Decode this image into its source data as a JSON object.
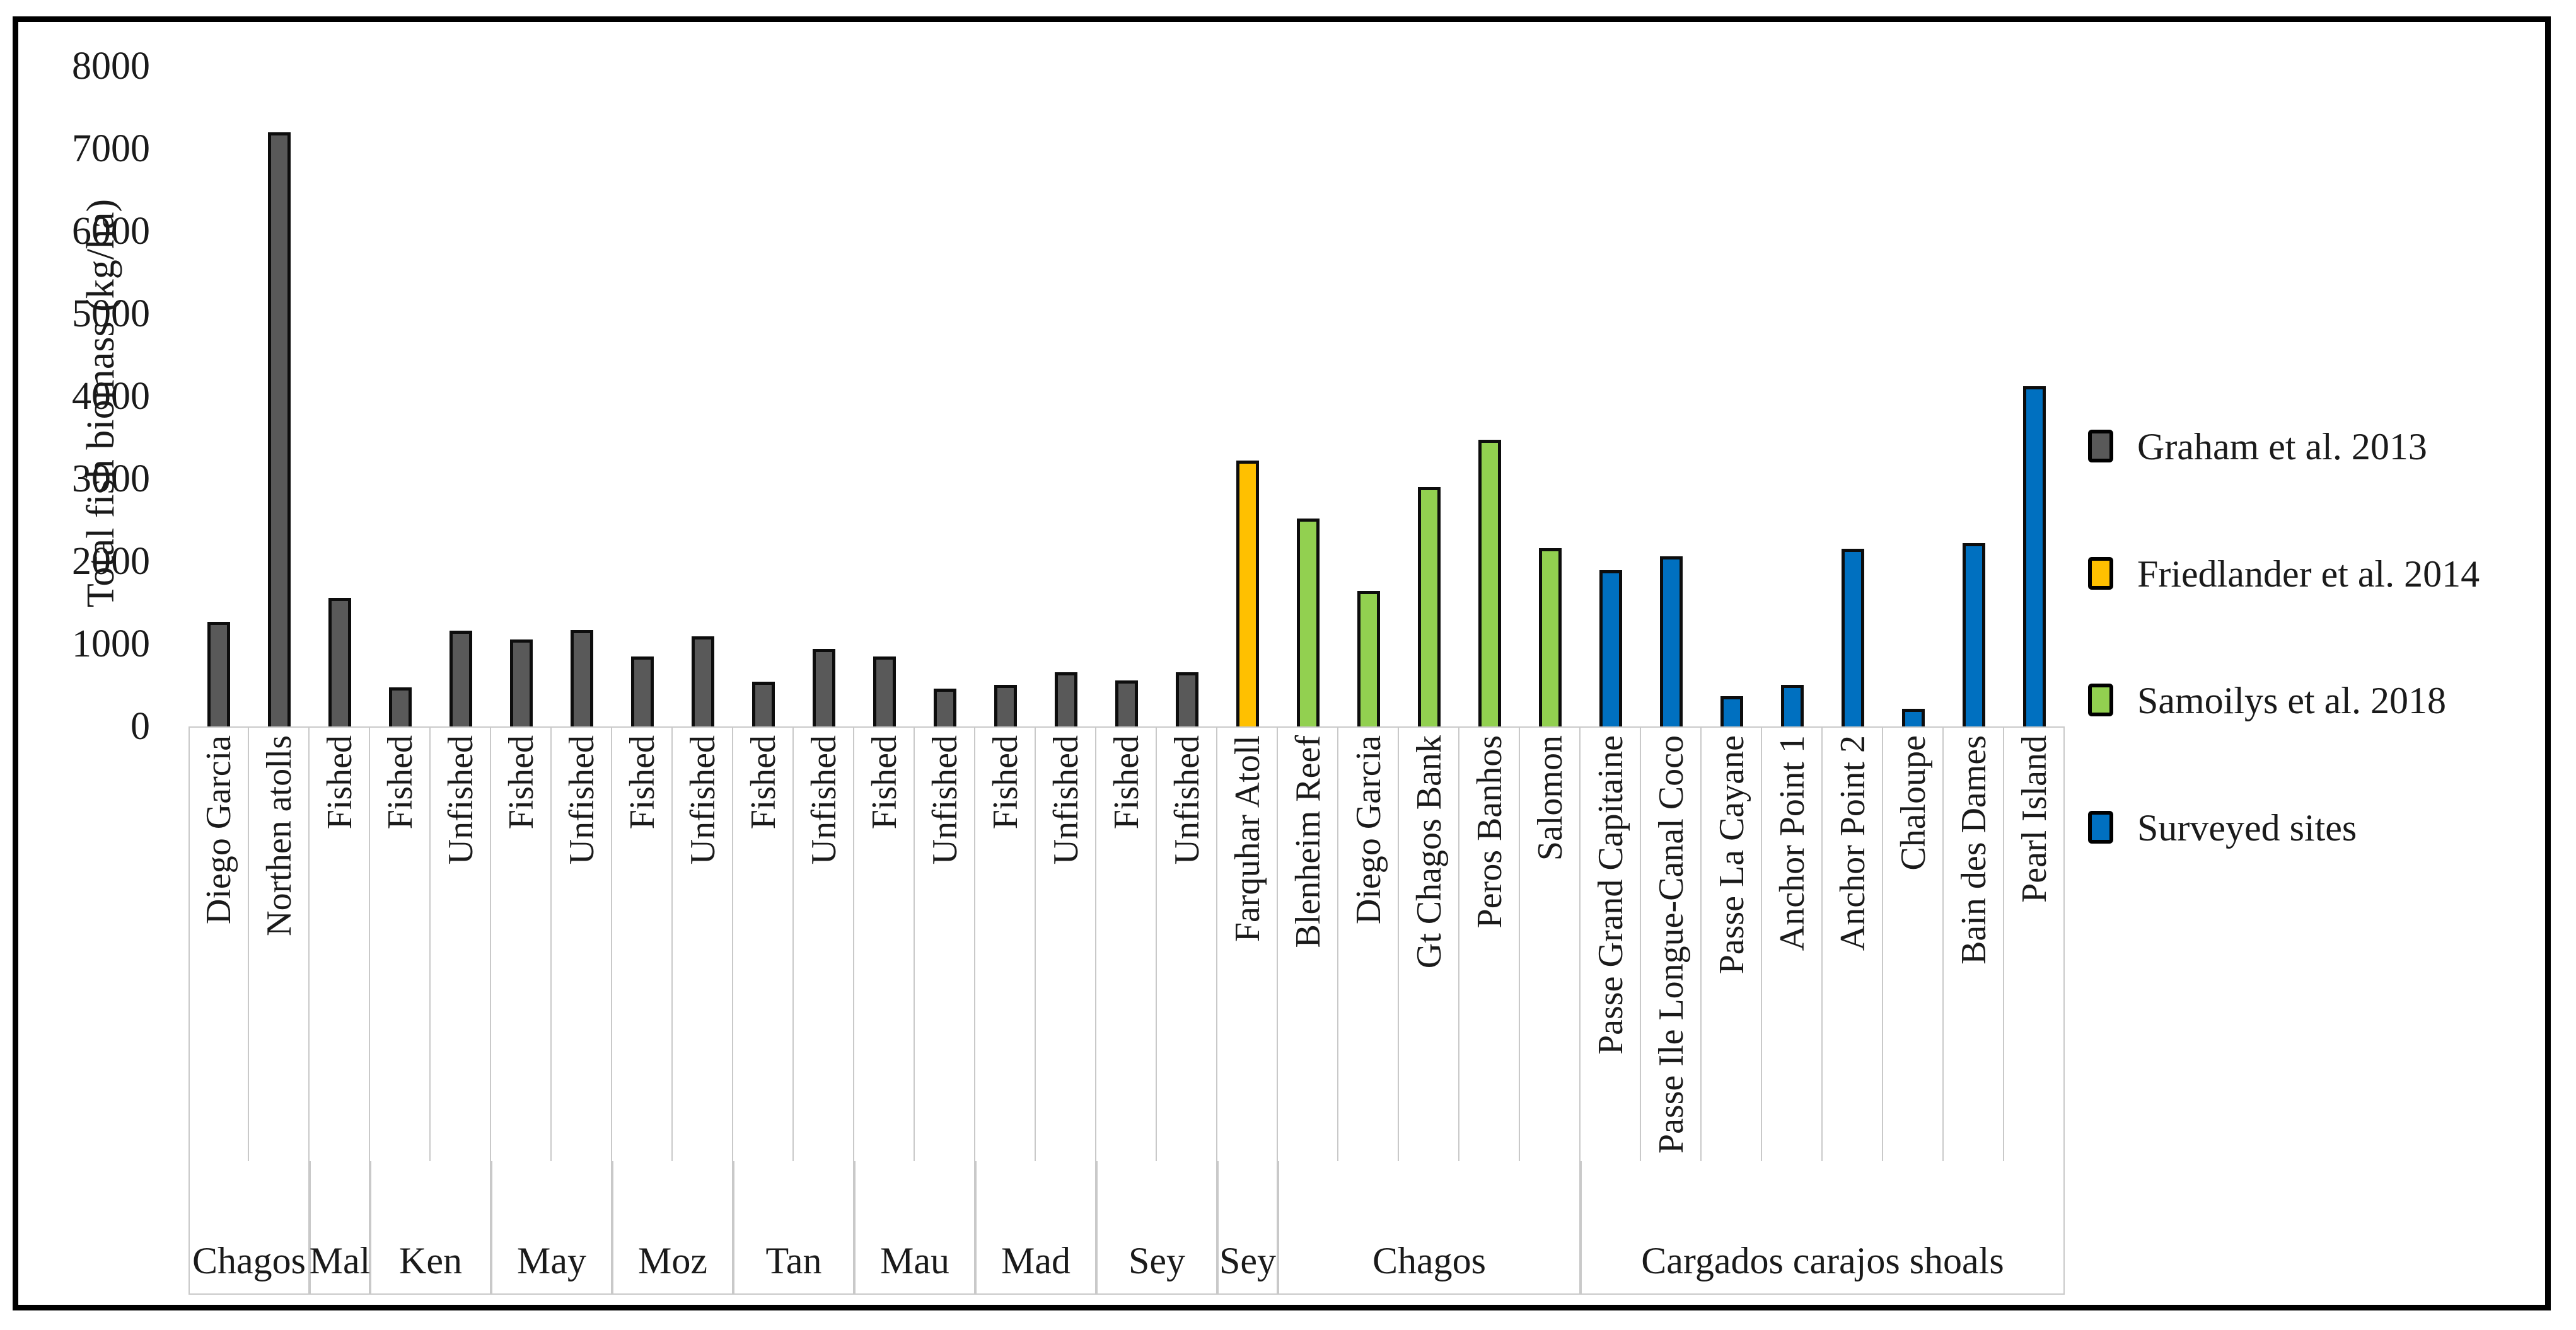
{
  "chart_data": {
    "type": "bar",
    "title": "",
    "xlabel": "",
    "ylabel": "Total fish biomass (kg/ha)",
    "ylim": [
      0,
      8000
    ],
    "yticks": [
      0,
      1000,
      2000,
      3000,
      4000,
      5000,
      6000,
      7000,
      8000
    ],
    "grid": false,
    "legend_position": "right",
    "legend": [
      {
        "key": "graham",
        "label": "Graham et al. 2013",
        "color": "#595959"
      },
      {
        "key": "friedlander",
        "label": "Friedlander et al. 2014",
        "color": "#FFC000"
      },
      {
        "key": "samoilys",
        "label": "Samoilys et al. 2018",
        "color": "#92D050"
      },
      {
        "key": "surveyed",
        "label": "Surveyed sites",
        "color": "#0070C0"
      }
    ],
    "groups": [
      {
        "label": "Chagos",
        "bar_count": 2
      },
      {
        "label": "Mal",
        "bar_count": 1
      },
      {
        "label": "Ken",
        "bar_count": 2
      },
      {
        "label": "May",
        "bar_count": 2
      },
      {
        "label": "Moz",
        "bar_count": 2
      },
      {
        "label": "Tan",
        "bar_count": 2
      },
      {
        "label": "Mau",
        "bar_count": 2
      },
      {
        "label": "Mad",
        "bar_count": 2
      },
      {
        "label": "Sey",
        "bar_count": 2
      },
      {
        "label": "Sey",
        "bar_count": 1
      },
      {
        "label": "Chagos",
        "bar_count": 5
      },
      {
        "label": "Cargados carajos shoals",
        "bar_count": 8
      }
    ],
    "bars": [
      {
        "label": "Diego Garcia",
        "value": 1270,
        "series": "graham"
      },
      {
        "label": "Northen atolls",
        "value": 7200,
        "series": "graham"
      },
      {
        "label": "Fished",
        "value": 1560,
        "series": "graham"
      },
      {
        "label": "Fished",
        "value": 470,
        "series": "graham"
      },
      {
        "label": "Unfished",
        "value": 1160,
        "series": "graham"
      },
      {
        "label": "Fished",
        "value": 1050,
        "series": "graham"
      },
      {
        "label": "Unfished",
        "value": 1170,
        "series": "graham"
      },
      {
        "label": "Fished",
        "value": 850,
        "series": "graham"
      },
      {
        "label": "Unfished",
        "value": 1090,
        "series": "graham"
      },
      {
        "label": "Fished",
        "value": 545,
        "series": "graham"
      },
      {
        "label": "Unfished",
        "value": 940,
        "series": "graham"
      },
      {
        "label": "Fished",
        "value": 850,
        "series": "graham"
      },
      {
        "label": "Unfished",
        "value": 455,
        "series": "graham"
      },
      {
        "label": "Fished",
        "value": 500,
        "series": "graham"
      },
      {
        "label": "Unfished",
        "value": 660,
        "series": "graham"
      },
      {
        "label": "Fished",
        "value": 555,
        "series": "graham"
      },
      {
        "label": "Unfished",
        "value": 660,
        "series": "graham"
      },
      {
        "label": "Farquhar Atoll",
        "value": 3220,
        "series": "friedlander"
      },
      {
        "label": "Blenheim Reef",
        "value": 2520,
        "series": "samoilys"
      },
      {
        "label": "Diego Garcia",
        "value": 1640,
        "series": "samoilys"
      },
      {
        "label": "Gt Chagos Bank",
        "value": 2900,
        "series": "samoilys"
      },
      {
        "label": "Peros Banhos",
        "value": 3470,
        "series": "samoilys"
      },
      {
        "label": "Salomon",
        "value": 2160,
        "series": "samoilys"
      },
      {
        "label": "Passe Grand Capitaine",
        "value": 1890,
        "series": "surveyed"
      },
      {
        "label": "Passe Ile Longue-Canal Coco",
        "value": 2060,
        "series": "surveyed"
      },
      {
        "label": "Passe La Cayane",
        "value": 370,
        "series": "surveyed"
      },
      {
        "label": "Anchor Point 1",
        "value": 500,
        "series": "surveyed"
      },
      {
        "label": "Anchor Point 2",
        "value": 2150,
        "series": "surveyed"
      },
      {
        "label": "Chaloupe",
        "value": 210,
        "series": "surveyed"
      },
      {
        "label": "Bain des Dames",
        "value": 2220,
        "series": "surveyed"
      },
      {
        "label": "Pearl Island",
        "value": 4120,
        "series": "surveyed"
      }
    ]
  }
}
